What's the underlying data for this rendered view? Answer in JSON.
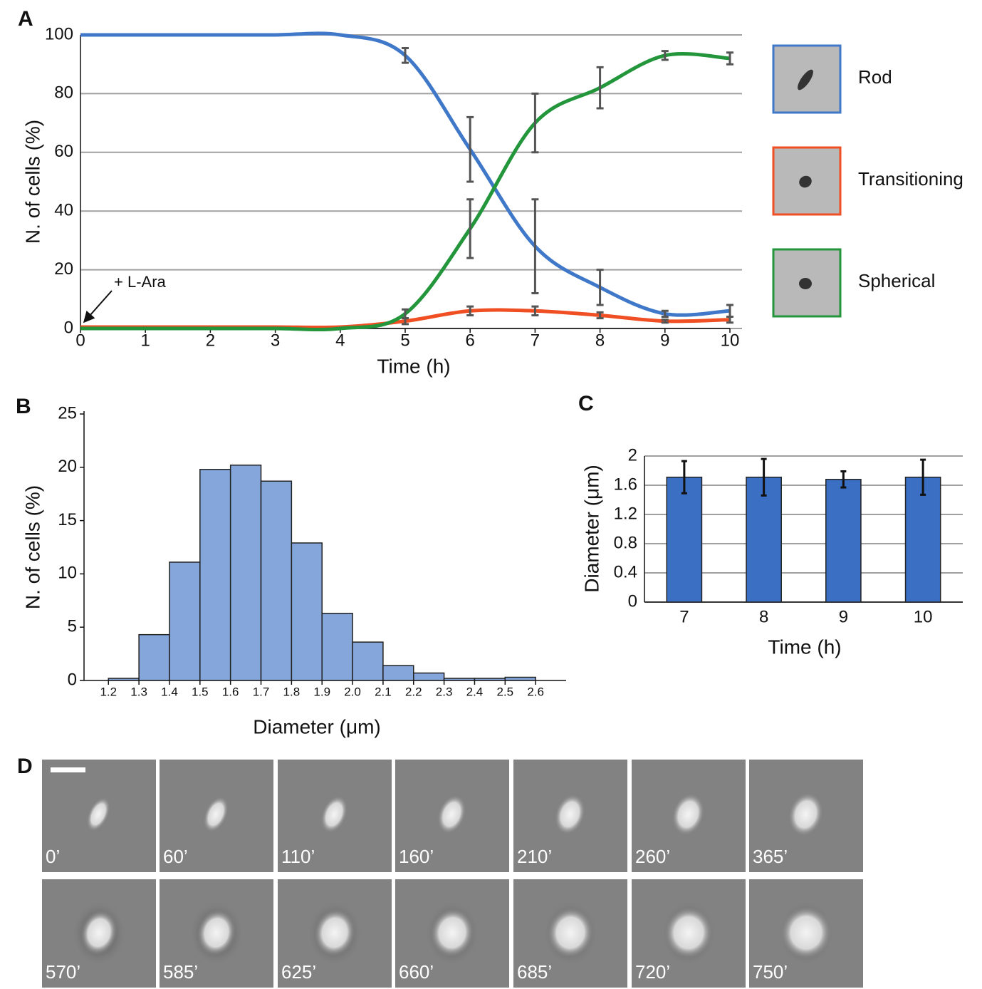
{
  "chart_data": [
    {
      "type": "line",
      "panel": "A",
      "y_label": "N. of cells (%)",
      "x_label": "Time (h)",
      "x": [
        0,
        1,
        2,
        3,
        4,
        5,
        6,
        7,
        8,
        9,
        10
      ],
      "series": [
        {
          "name": "Rod",
          "color": "#3f78c8",
          "values": [
            100,
            100,
            100,
            100,
            100,
            93,
            61,
            28,
            14,
            5,
            6
          ],
          "errors": [
            null,
            null,
            null,
            null,
            null,
            2.5,
            11,
            16,
            6,
            1,
            2
          ]
        },
        {
          "name": "Transitioning",
          "color": "#f04e23",
          "values": [
            0.5,
            0.5,
            0.5,
            0.5,
            0.5,
            2.5,
            6,
            6,
            4.5,
            2.5,
            3
          ],
          "errors": [
            null,
            null,
            null,
            null,
            null,
            1,
            1.5,
            1.5,
            1,
            0.5,
            1
          ]
        },
        {
          "name": "Spherical",
          "color": "#23963c",
          "values": [
            0,
            0,
            0,
            0,
            0,
            5,
            34,
            70,
            82,
            93,
            92
          ],
          "errors": [
            null,
            null,
            null,
            null,
            null,
            1.5,
            10,
            10,
            7,
            1.5,
            2
          ]
        }
      ],
      "annotation": "+ L-Ara",
      "xlim": [
        0,
        10
      ],
      "xticks": [
        0,
        1,
        2,
        3,
        4,
        5,
        6,
        7,
        8,
        9,
        10
      ],
      "ylim": [
        0,
        100
      ],
      "yticks": [
        0,
        20,
        40,
        60,
        80,
        100
      ],
      "grid": true
    },
    {
      "type": "histogram",
      "panel": "B",
      "y_label": "N. of cells (%)",
      "x_label": "Diameter (μm)",
      "bins": [
        1.2,
        1.3,
        1.4,
        1.5,
        1.6,
        1.7,
        1.8,
        1.9,
        2.0,
        2.1,
        2.2,
        2.3,
        2.4,
        2.5,
        2.6
      ],
      "values": [
        0.2,
        4.3,
        11.1,
        19.8,
        20.2,
        18.7,
        12.9,
        6.3,
        3.6,
        1.4,
        0.7,
        0.2,
        0.2,
        0.3
      ],
      "color": "#84a6db",
      "xlim": [
        1.12,
        2.7
      ],
      "xticks": [
        1.2,
        1.3,
        1.4,
        1.5,
        1.6,
        1.7,
        1.8,
        1.9,
        {
          "value": 2,
          "label": "2.0"
        },
        2.1,
        2.2,
        2.3,
        2.4,
        2.5,
        2.6
      ],
      "ylim": [
        0,
        25
      ],
      "yticks": [
        0,
        5,
        10,
        15,
        20,
        25
      ],
      "grid": false
    },
    {
      "type": "bar",
      "panel": "C",
      "y_label": "Diameter (μm)",
      "x_label": "Time (h)",
      "categories": [
        "7",
        "8",
        "9",
        "10"
      ],
      "values": [
        1.71,
        1.71,
        1.68,
        1.71
      ],
      "errors": [
        0.22,
        0.25,
        0.11,
        0.24
      ],
      "color": "#3a6fc4",
      "ylim": [
        0,
        2
      ],
      "yticks": [
        0,
        0.4,
        0.8,
        1.2,
        1.6,
        2
      ],
      "grid": true
    }
  ],
  "time_lapse": {
    "panel": "D",
    "frames": [
      "0’",
      "60’",
      "110’",
      "160’",
      "210’",
      "260’",
      "365’",
      "570’",
      "585’",
      "625’",
      "660’",
      "685’",
      "720’",
      "750’"
    ]
  }
}
